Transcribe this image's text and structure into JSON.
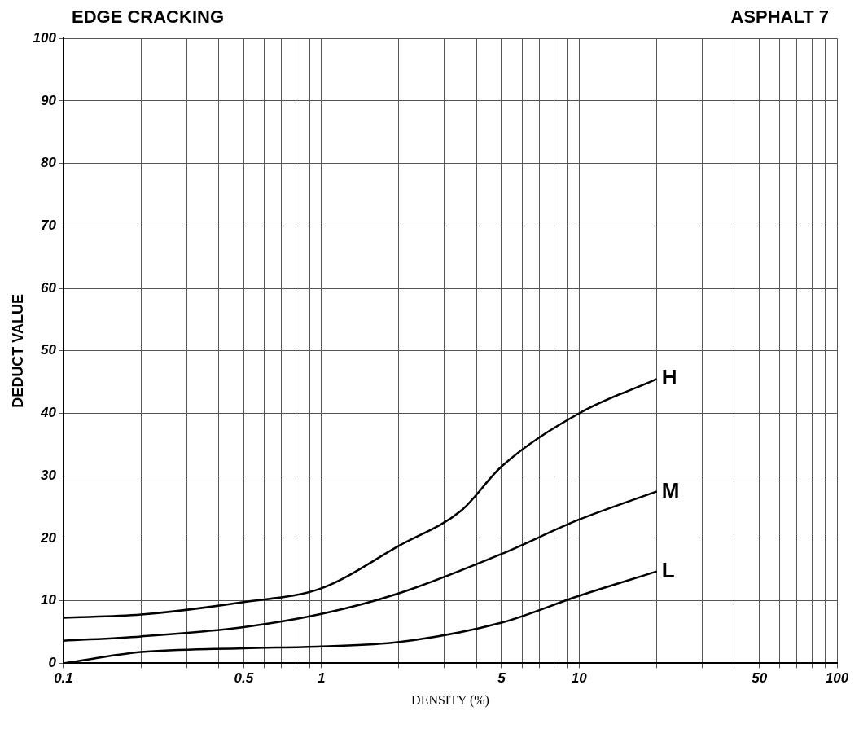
{
  "chart_data": {
    "type": "line",
    "title": "EDGE CRACKING",
    "subtitle": "ASPHALT 7",
    "xlabel": "DENSITY (%)",
    "ylabel": "DEDUCT VALUE",
    "log": "x",
    "grid": true,
    "legend": false,
    "marker": "none",
    "line_style": "solid",
    "xlim": [
      0.1,
      100
    ],
    "ylim": [
      0,
      100
    ],
    "xticks": [
      0.1,
      {
        "value": 0.2,
        "label": null
      },
      {
        "value": 0.3,
        "label": null
      },
      {
        "value": 0.4,
        "label": null
      },
      0.5,
      {
        "value": 0.6,
        "label": null
      },
      {
        "value": 0.7,
        "label": null
      },
      {
        "value": 0.8,
        "label": null
      },
      {
        "value": 0.9,
        "label": null
      },
      1,
      {
        "value": 2,
        "label": null
      },
      {
        "value": 3,
        "label": null
      },
      {
        "value": 4,
        "label": null
      },
      5,
      {
        "value": 6,
        "label": null
      },
      {
        "value": 7,
        "label": null
      },
      {
        "value": 8,
        "label": null
      },
      {
        "value": 9,
        "label": null
      },
      10,
      {
        "value": 20,
        "label": null
      },
      {
        "value": 30,
        "label": null
      },
      {
        "value": 40,
        "label": null
      },
      50,
      {
        "value": 60,
        "label": null
      },
      {
        "value": 70,
        "label": null
      },
      {
        "value": 80,
        "label": null
      },
      {
        "value": 90,
        "label": null
      },
      100
    ],
    "yticks": [
      0,
      10,
      20,
      30,
      40,
      50,
      60,
      70,
      80,
      90,
      100
    ],
    "series": [
      {
        "name": "H",
        "color": "#000000",
        "x": [
          0.1,
          0.2,
          0.5,
          1,
          2,
          3.5,
          5,
          10,
          20
        ],
        "values": [
          7.3,
          7.8,
          9.8,
          12,
          18.8,
          24.5,
          31.5,
          40,
          45.5
        ]
      },
      {
        "name": "M",
        "color": "#000000",
        "x": [
          0.1,
          0.2,
          0.5,
          1,
          2,
          5,
          10,
          20
        ],
        "values": [
          3.6,
          4.3,
          5.8,
          7.9,
          11.2,
          17.5,
          23,
          27.5
        ]
      },
      {
        "name": "L",
        "color": "#000000",
        "x": [
          0.1,
          0.2,
          0.5,
          1,
          2,
          5,
          10,
          20
        ],
        "values": [
          0,
          1.8,
          2.4,
          2.7,
          3.4,
          6.5,
          10.8,
          14.7
        ]
      }
    ]
  }
}
